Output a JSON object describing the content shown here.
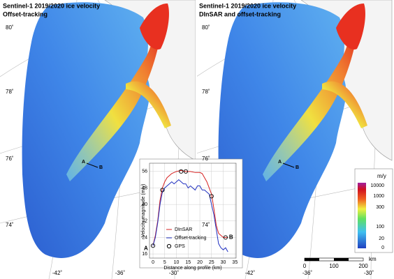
{
  "panels": [
    {
      "title": "Sentinel-1 2019/2020 ice velocity",
      "subtitle": "Offset-tracking",
      "lat_labels": [
        "80˚",
        "78˚",
        "76˚",
        "74˚"
      ],
      "lon_labels": [
        "-42˚",
        "-36˚",
        "-30˚"
      ],
      "point_a": "A",
      "point_b": "B"
    },
    {
      "title": "Sentinel-1 2019/2020 ice velocity",
      "subtitle": "DInSAR and offset-tracking",
      "lat_labels": [
        "80˚",
        "78˚",
        "76˚",
        "74˚"
      ],
      "lon_labels": [
        "-42˚",
        "-36˚",
        "-30˚"
      ],
      "point_a": "A",
      "point_b": "B"
    }
  ],
  "colorbar": {
    "unit": "m/y",
    "labels": [
      "10000",
      "1000",
      "300",
      "100",
      "20",
      "0"
    ]
  },
  "scalebar": {
    "labels": [
      "0",
      "100",
      "200"
    ],
    "unit": "km"
  },
  "chart_data": {
    "type": "line",
    "xlabel": "Distance along profile (km)",
    "ylabel": "Velocity magnitude (m/y)",
    "xlim": [
      -1.5,
      35.5
    ],
    "ylim": [
      14,
      60
    ],
    "xticks": [
      0,
      5,
      10,
      15,
      20,
      25,
      30,
      35
    ],
    "yticks": [
      16,
      24,
      32,
      40,
      48,
      56
    ],
    "grid": true,
    "start_label": "A",
    "end_label": "B",
    "series": [
      {
        "name": "DInSAR",
        "color": "#d62020",
        "mode": "lines",
        "x": [
          0,
          1,
          2,
          3,
          4,
          5,
          6,
          7,
          8,
          10,
          12,
          14,
          16,
          18,
          20,
          21,
          22,
          23,
          24,
          25,
          26,
          27,
          28,
          29,
          30,
          31,
          32
        ],
        "values": [
          20,
          25,
          32,
          42,
          48,
          51,
          53,
          54,
          55,
          56,
          56.5,
          56,
          56,
          55.5,
          55.5,
          55,
          53,
          51,
          48,
          45,
          38,
          30,
          26,
          25,
          24,
          24,
          24
        ]
      },
      {
        "name": "Offset-tracking",
        "color": "#2030c0",
        "mode": "lines",
        "x": [
          0,
          1,
          2,
          3,
          4,
          5,
          6,
          7,
          8,
          9,
          10,
          11,
          12,
          13,
          14,
          15,
          16,
          17,
          18,
          19,
          20,
          21,
          22,
          23,
          24,
          25,
          26,
          27,
          28,
          29,
          30,
          31,
          32
        ],
        "values": [
          20,
          24,
          31,
          40,
          46,
          48,
          49,
          50,
          51,
          50,
          51,
          52,
          51,
          50,
          50,
          48,
          49,
          48,
          47,
          49,
          49,
          47,
          47,
          46,
          45,
          40,
          35,
          28,
          21,
          19,
          18,
          19,
          17
        ]
      },
      {
        "name": "GPS",
        "color": "#000000",
        "mode": "markers",
        "x": [
          0,
          4,
          12,
          14,
          25,
          31
        ],
        "values": [
          20,
          47,
          56,
          56,
          44,
          24
        ]
      }
    ]
  }
}
